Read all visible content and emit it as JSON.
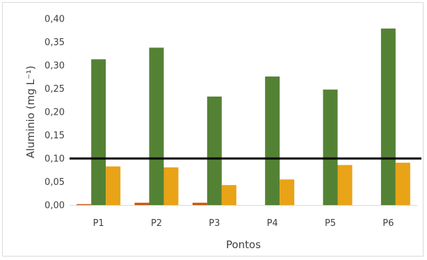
{
  "chart_data": {
    "type": "bar",
    "categories": [
      "P1",
      "P2",
      "P3",
      "P4",
      "P5",
      "P6"
    ],
    "series": [
      {
        "values": [
          0.002,
          0.005,
          0.005,
          0.0,
          0.0,
          0.0
        ],
        "color": "#c55a11"
      },
      {
        "values": [
          0.313,
          0.338,
          0.233,
          0.276,
          0.248,
          0.379
        ],
        "color": "#548235"
      },
      {
        "values": [
          0.083,
          0.081,
          0.043,
          0.055,
          0.086,
          0.091
        ],
        "color": "#e8a317"
      }
    ],
    "reference_line": {
      "y": 0.1,
      "color": "#000000"
    },
    "yticks": [
      "0,00",
      "0,05",
      "0,10",
      "0,15",
      "0,20",
      "0,25",
      "0,30",
      "0,35",
      "0,40"
    ],
    "ylim": [
      0,
      0.4
    ],
    "xlabel": "Pontos",
    "ylabel": "Aluminio (mg L⁻¹)",
    "grid": false,
    "legend": "none"
  }
}
